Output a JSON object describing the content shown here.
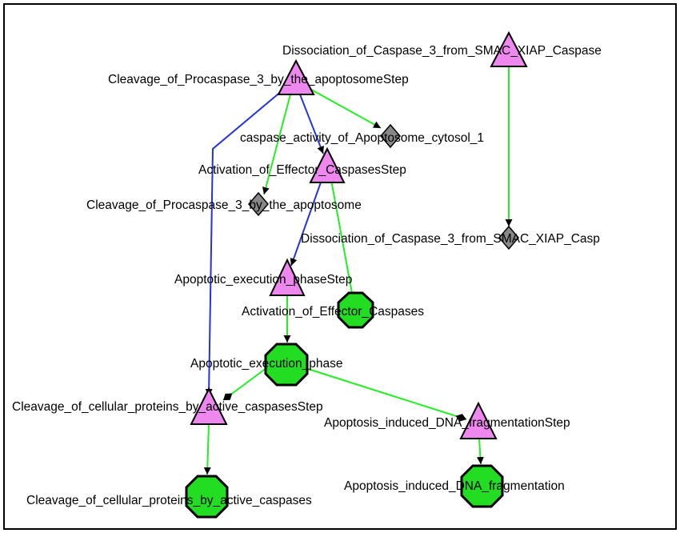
{
  "colors": {
    "background": "#ffffff",
    "frame": "#000000",
    "step_fill": "#ee88ee",
    "entity_fill": "#22dd22",
    "state_fill": "#888888",
    "edge_green": "#22ee22",
    "edge_blue": "#2233dd",
    "outline": "#000000"
  },
  "nodes": [
    {
      "id": "n1",
      "shape": "triangle",
      "label": "Cleavage_of_Procaspase_3_by_the_apoptosomeStep"
    },
    {
      "id": "n2",
      "shape": "triangle",
      "label": "Dissociation_of_Caspase_3_from_SMAC_XIAP_Caspase"
    },
    {
      "id": "n3",
      "shape": "diamond",
      "label": "caspase_activity_of_Apoptosome_cytosol_1"
    },
    {
      "id": "n4",
      "shape": "triangle",
      "label": "Activation_of_Effector_CaspasesStep"
    },
    {
      "id": "n5",
      "shape": "diamond",
      "label": "Cleavage_of_Procaspase_3_by_the_apoptosome"
    },
    {
      "id": "n6",
      "shape": "diamond",
      "label": "Dissociation_of_Caspase_3_from_SMAC_XIAP_Casp"
    },
    {
      "id": "n7",
      "shape": "triangle",
      "label": "Apoptotic_execution_phaseStep"
    },
    {
      "id": "n8",
      "shape": "octagon",
      "label": "Activation_of_Effector_Caspases"
    },
    {
      "id": "n9",
      "shape": "octagon",
      "label": "Apoptotic_execution_phase"
    },
    {
      "id": "n10",
      "shape": "triangle",
      "label": "Cleavage_of_cellular_proteins_by_active_caspasesStep"
    },
    {
      "id": "n11",
      "shape": "triangle",
      "label": "Apoptosis_induced_DNA_fragmentationStep"
    },
    {
      "id": "n12",
      "shape": "octagon",
      "label": "Cleavage_of_cellular_proteins_by_active_caspases"
    },
    {
      "id": "n13",
      "shape": "octagon",
      "label": "Apoptosis_induced_DNA_fragmentation"
    }
  ],
  "edges": [
    {
      "from": "n1",
      "to": "n3",
      "color": "green",
      "head": "arrow"
    },
    {
      "from": "n1",
      "to": "n5",
      "color": "green",
      "head": "arrow"
    },
    {
      "from": "n1",
      "to": "n4",
      "color": "blue",
      "head": "arrow"
    },
    {
      "from": "n1",
      "to": "n10",
      "color": "blue",
      "head": "arrow"
    },
    {
      "from": "n2",
      "to": "n6",
      "color": "green",
      "head": "arrow"
    },
    {
      "from": "n4",
      "to": "n7",
      "color": "blue",
      "head": "arrow"
    },
    {
      "from": "n4",
      "to": "n8",
      "color": "green",
      "head": "none"
    },
    {
      "from": "n7",
      "to": "n9",
      "color": "green",
      "head": "arrow"
    },
    {
      "from": "n9",
      "to": "n10",
      "color": "green",
      "head": "diamond"
    },
    {
      "from": "n9",
      "to": "n11",
      "color": "green",
      "head": "diamond"
    },
    {
      "from": "n10",
      "to": "n12",
      "color": "green",
      "head": "arrow"
    },
    {
      "from": "n11",
      "to": "n13",
      "color": "green",
      "head": "arrow"
    }
  ]
}
